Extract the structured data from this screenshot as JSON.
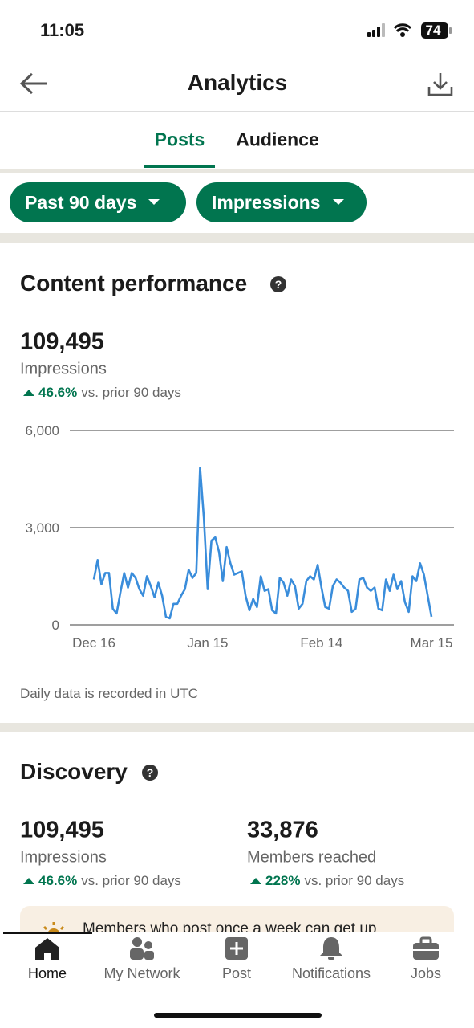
{
  "status_bar": {
    "time": "11:05",
    "battery": "74"
  },
  "header": {
    "title": "Analytics"
  },
  "tabs": [
    "Posts",
    "Audience"
  ],
  "filters": [
    "Past 90 days",
    "Impressions"
  ],
  "content_performance": {
    "title": "Content performance",
    "total": "109,495",
    "metric": "Impressions",
    "change": "46.6%",
    "change_text": "vs. prior 90 days",
    "note": "Daily data is recorded in UTC"
  },
  "chart_data": {
    "type": "line",
    "categories": [
      "Dec 16",
      null,
      null,
      null,
      null,
      null,
      null,
      null,
      null,
      null,
      null,
      null,
      null,
      null,
      null,
      null,
      null,
      null,
      null,
      null,
      null,
      null,
      null,
      null,
      null,
      null,
      null,
      null,
      null,
      null,
      "Jan 15",
      null,
      null,
      null,
      null,
      null,
      null,
      null,
      null,
      null,
      null,
      null,
      null,
      null,
      null,
      null,
      null,
      null,
      null,
      null,
      null,
      null,
      null,
      null,
      null,
      null,
      null,
      null,
      null,
      null,
      "Feb 14",
      null,
      null,
      null,
      null,
      null,
      null,
      null,
      null,
      null,
      null,
      null,
      null,
      null,
      null,
      null,
      null,
      null,
      null,
      null,
      null,
      null,
      null,
      null,
      null,
      null,
      null,
      null,
      null,
      "Mar 15"
    ],
    "values": [
      1400,
      2000,
      1250,
      1600,
      1600,
      500,
      350,
      1000,
      1600,
      1150,
      1600,
      1450,
      1100,
      900,
      1500,
      1200,
      850,
      1300,
      900,
      250,
      200,
      650,
      650,
      900,
      1100,
      1700,
      1450,
      1600,
      4850,
      3300,
      1100,
      2600,
      2700,
      2250,
      1350,
      2400,
      1900,
      1550,
      1600,
      1650,
      900,
      450,
      800,
      550,
      1500,
      1050,
      1100,
      450,
      350,
      1450,
      1300,
      900,
      1400,
      1200,
      500,
      650,
      1350,
      1500,
      1400,
      1850,
      1150,
      550,
      500,
      1200,
      1400,
      1300,
      1150,
      1050,
      400,
      500,
      1400,
      1450,
      1150,
      1050,
      1150,
      500,
      450,
      1400,
      1050,
      1550,
      1100,
      1350,
      700,
      400,
      1500,
      1350,
      1900,
      1550,
      900,
      250
    ],
    "color": "#3a8ddb",
    "ylim": [
      0,
      6000
    ],
    "yticks": [
      0,
      {
        "value": 3000,
        "label": "3,000"
      },
      {
        "value": 6000,
        "label": "6,000"
      }
    ],
    "grid": true
  },
  "discovery": {
    "title": "Discovery",
    "stats": [
      {
        "value": "109,495",
        "label": "Impressions",
        "change": "46.6%",
        "change_text": "vs. prior 90 days"
      },
      {
        "value": "33,876",
        "label": "Members reached",
        "change": "228%",
        "change_text": "vs. prior 90 days"
      }
    ],
    "banner": "Members who post once a week can get up"
  },
  "nav": [
    "Home",
    "My Network",
    "Post",
    "Notifications",
    "Jobs"
  ]
}
